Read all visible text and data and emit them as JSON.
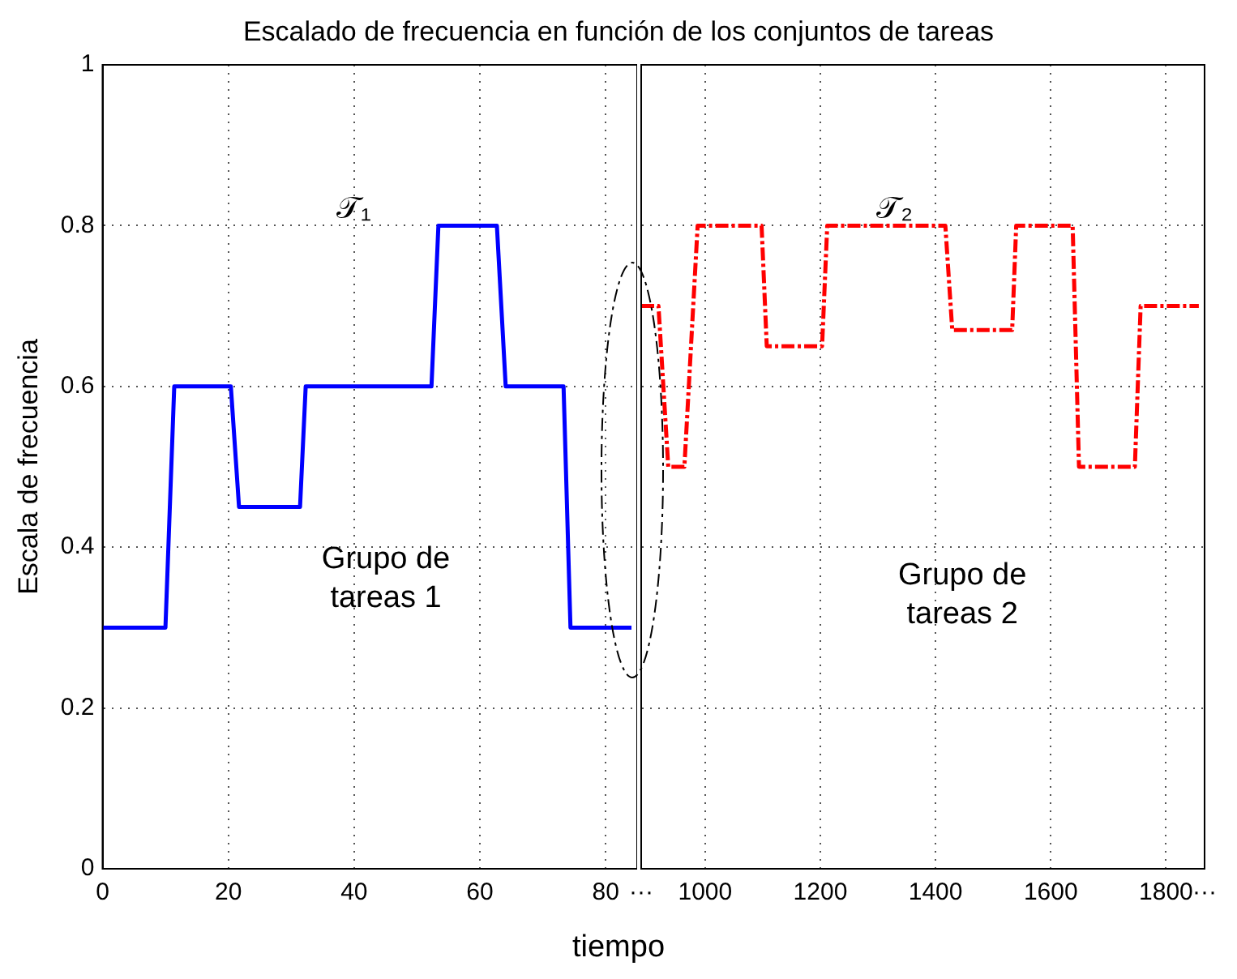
{
  "chart_data": [
    {
      "type": "line",
      "title": "Escalado de frecuencia en función de los conjuntos de tareas",
      "xlabel": "tiempo",
      "ylabel": "Escala de frecuencia",
      "xlim": [
        0,
        85
      ],
      "xticks": [
        0,
        20,
        40,
        60,
        80
      ],
      "ylim": [
        0,
        1
      ],
      "yticks": [
        0,
        0.2,
        0.4,
        0.6,
        0.8,
        1
      ],
      "grid": true,
      "marker": "none",
      "series": [
        {
          "color": "#0000ff",
          "line_style": "solid",
          "x": [
            0,
            10,
            11.4,
            20.4,
            21.7,
            31.4,
            32.3,
            52.3,
            53.4,
            62.7,
            64.1,
            73.3,
            74.4,
            84.1
          ],
          "values": [
            0.3,
            0.3,
            0.6,
            0.6,
            0.45,
            0.45,
            0.6,
            0.6,
            0.8,
            0.8,
            0.6,
            0.6,
            0.3,
            0.3
          ]
        }
      ],
      "annotations": [
        "𝒯₁",
        "Grupo de\ntareas 1"
      ]
    },
    {
      "type": "line",
      "xlim": [
        889,
        1867
      ],
      "xticks": [
        {
          "value": 889,
          "label": "···"
        },
        1000,
        1200,
        1400,
        1600,
        1800,
        {
          "value": 1867,
          "label": "···"
        }
      ],
      "ylim": [
        0,
        1
      ],
      "yticks": [
        0,
        0.2,
        0.4,
        0.6,
        0.8,
        1
      ],
      "grid": true,
      "marker": "none",
      "tick_labels": "x",
      "series": [
        {
          "color": "#ff0000",
          "line_style": "dashed",
          "x": [
            889,
            919,
            936,
            964,
            987,
            1098,
            1107,
            1203,
            1212,
            1417,
            1429,
            1533,
            1540,
            1638,
            1649,
            1746,
            1756,
            1857
          ],
          "values": [
            0.7,
            0.7,
            0.5,
            0.5,
            0.8,
            0.8,
            0.65,
            0.65,
            0.8,
            0.8,
            0.67,
            0.67,
            0.8,
            0.8,
            0.5,
            0.5,
            0.7,
            0.7
          ]
        }
      ],
      "annotations": [
        "𝒯₂",
        "Grupo de\ntareas 2"
      ]
    }
  ]
}
